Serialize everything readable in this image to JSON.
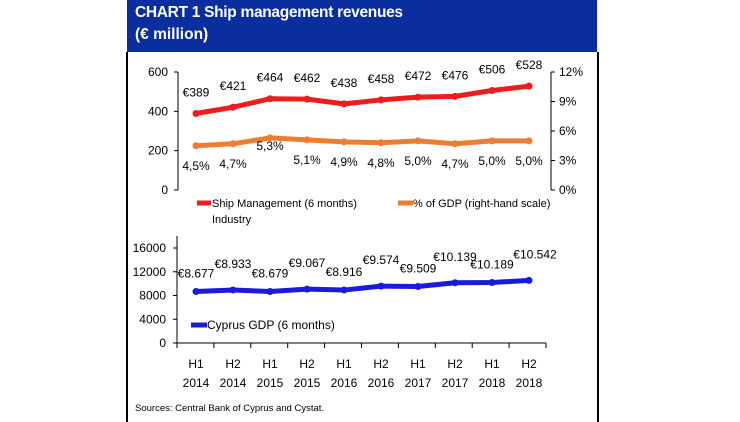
{
  "header": {
    "title": "CHART 1  Ship management revenues",
    "subtitle": "(€ million)"
  },
  "source": "Sources: Central Bank of Cyprus and Cystat.",
  "chart_data": [
    {
      "type": "line",
      "categories": [
        "H1 2014",
        "H2 2014",
        "H1 2015",
        "H2 2015",
        "H1 2016",
        "H2 2016",
        "H1 2017",
        "H2 2017",
        "H1 2018",
        "H2 2018"
      ],
      "y_ticks": [
        "0",
        "200",
        "400",
        "600"
      ],
      "y2_ticks": [
        "0%",
        "3%",
        "6%",
        "9%",
        "12%"
      ],
      "ylim": [
        0,
        600
      ],
      "y2lim": [
        0,
        12
      ],
      "series": [
        {
          "name": "Ship Management (6 months) Industry",
          "legend": [
            "Ship Management (6 months)",
            "Industry"
          ],
          "color": "#ee1c1c",
          "axis": "left",
          "values": [
            389,
            421,
            464,
            462,
            438,
            458,
            472,
            476,
            506,
            528
          ],
          "labels": [
            "€389",
            "€421",
            "€464",
            "€462",
            "€438",
            "€458",
            "€472",
            "€476",
            "€506",
            "€528"
          ]
        },
        {
          "name": "% of GDP (right-hand scale)",
          "legend": [
            "% of GDP (right-hand scale)"
          ],
          "color": "#ed7d31",
          "axis": "right",
          "values": [
            4.5,
            4.7,
            5.3,
            5.1,
            4.9,
            4.8,
            5.0,
            4.7,
            5.0,
            5.0
          ],
          "labels": [
            "4,5%",
            "4,7%",
            "5,3%",
            "5,1%",
            "4,9%",
            "4,8%",
            "5,0%",
            "4,7%",
            "5,0%",
            "5,0%"
          ]
        }
      ],
      "legend_placement": "bottom"
    },
    {
      "type": "line",
      "categories": [
        "H1 2014",
        "H2 2014",
        "H1 2015",
        "H2 2015",
        "H1 2016",
        "H2 2016",
        "H1 2017",
        "H2 2017",
        "H1 2018",
        "H2 2018"
      ],
      "x_tick_labels": [
        [
          "H1",
          "2014"
        ],
        [
          "H2",
          "2014"
        ],
        [
          "H1",
          "2015"
        ],
        [
          "H2",
          "2015"
        ],
        [
          "H1",
          "2016"
        ],
        [
          "H2",
          "2016"
        ],
        [
          "H1",
          "2017"
        ],
        [
          "H2",
          "2017"
        ],
        [
          "H1",
          "2018"
        ],
        [
          "H2",
          "2018"
        ]
      ],
      "y_ticks": [
        "0",
        "4000",
        "8000",
        "12000",
        "16000"
      ],
      "ylim": [
        0,
        16000
      ],
      "series": [
        {
          "name": "Cyprus GDP (6 months)",
          "legend": [
            "Cyprus GDP (6 months)"
          ],
          "color": "#1a1adc",
          "values": [
            8677,
            8933,
            8679,
            9067,
            8916,
            9574,
            9509,
            10139,
            10189,
            10542
          ],
          "labels": [
            "€8.677",
            "€8.933",
            "€8.679",
            "€9.067",
            "€8.916",
            "€9.574",
            "€9.509",
            "€10.139",
            "€10.189",
            "€10.542"
          ]
        }
      ],
      "legend_placement": "inside-bottom-left"
    }
  ]
}
